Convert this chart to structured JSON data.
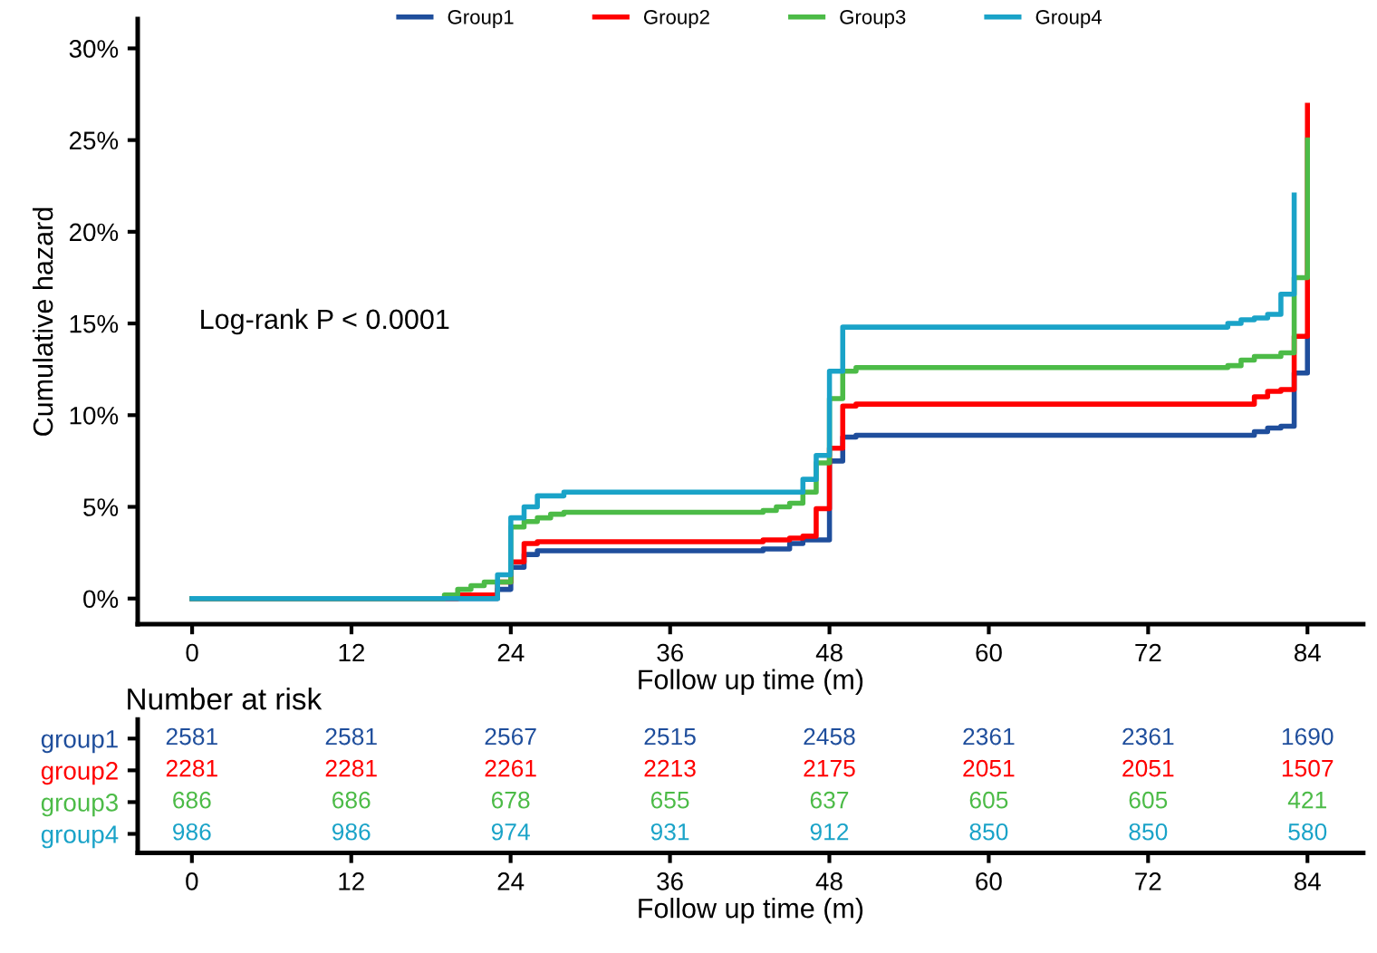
{
  "chart_data": [
    {
      "type": "step",
      "xlabel": "Follow up time (m)",
      "ylabel": "Cumulative hazard",
      "legend": "top",
      "grid": false,
      "xlim": [
        -4.1,
        88.2
      ],
      "xticks": [
        0,
        12,
        24,
        36,
        48,
        60,
        72,
        84
      ],
      "ylim": [
        -1.4,
        31.6
      ],
      "yticks": [
        {
          "value": 0,
          "label": "0%"
        },
        {
          "value": 5,
          "label": "5%"
        },
        {
          "value": 10,
          "label": "10%"
        },
        {
          "value": 15,
          "label": "15%"
        },
        {
          "value": 20,
          "label": "20%"
        },
        {
          "value": 25,
          "label": "25%"
        },
        {
          "value": 30,
          "label": "30%"
        }
      ],
      "annotations": [
        "Log-rank P < 0.0001"
      ],
      "series": [
        {
          "name": "Group1",
          "color": "#1f4e9c",
          "x": [
            0,
            23,
            24,
            25,
            26,
            43,
            45,
            46,
            48,
            49,
            50,
            80,
            81,
            82,
            83,
            84
          ],
          "values": [
            0,
            0.5,
            1.7,
            2.4,
            2.6,
            2.7,
            3.0,
            3.2,
            7.5,
            8.8,
            8.9,
            9.1,
            9.3,
            9.4,
            12.3,
            14.3
          ]
        },
        {
          "name": "Group2",
          "color": "#ff0000",
          "x": [
            0,
            20,
            23,
            24,
            25,
            26,
            43,
            45,
            46,
            47,
            48,
            49,
            50,
            80,
            81,
            82,
            83,
            84
          ],
          "values": [
            0,
            0.2,
            0.9,
            2.0,
            3.0,
            3.1,
            3.2,
            3.3,
            3.4,
            4.9,
            8.2,
            10.5,
            10.6,
            11.0,
            11.3,
            11.4,
            14.3,
            26.9
          ]
        },
        {
          "name": "Group3",
          "color": "#4cbb47",
          "x": [
            0,
            19,
            20,
            21,
            22,
            24,
            25,
            26,
            27,
            28,
            43,
            44,
            45,
            46,
            47,
            48,
            49,
            50,
            78,
            79,
            80,
            82,
            83,
            84
          ],
          "values": [
            0,
            0.2,
            0.5,
            0.7,
            0.9,
            3.9,
            4.2,
            4.4,
            4.6,
            4.7,
            4.8,
            5.0,
            5.2,
            5.8,
            7.4,
            10.9,
            12.4,
            12.6,
            12.7,
            13.0,
            13.2,
            13.4,
            17.5,
            25.0
          ]
        },
        {
          "name": "Group4",
          "color": "#1aa3c8",
          "x": [
            0,
            23,
            24,
            25,
            26,
            28,
            46,
            47,
            48,
            49,
            78,
            79,
            80,
            81,
            82,
            83
          ],
          "values": [
            0,
            1.3,
            4.4,
            5.0,
            5.6,
            5.8,
            6.5,
            7.8,
            12.4,
            14.8,
            15.0,
            15.2,
            15.3,
            15.5,
            16.6,
            22.0
          ]
        }
      ]
    },
    {
      "type": "heatmap",
      "title": "Number at risk",
      "xlabel": "Follow up time (m)",
      "data_labels": true,
      "categories": [
        "0",
        "12",
        "24",
        "36",
        "48",
        "60",
        "72",
        "84"
      ],
      "y_categories": [
        "group1",
        "group2",
        "group3",
        "group4"
      ],
      "colors": [
        "#1f4e9c",
        "#ff0000",
        "#4cbb47",
        "#1aa3c8"
      ],
      "cells": [
        [
          2581,
          2581,
          2567,
          2515,
          2458,
          2361,
          2361,
          1690
        ],
        [
          2281,
          2281,
          2261,
          2213,
          2175,
          2051,
          2051,
          1507
        ],
        [
          686,
          686,
          678,
          655,
          637,
          605,
          605,
          421
        ],
        [
          986,
          986,
          974,
          931,
          912,
          850,
          850,
          580
        ]
      ]
    }
  ]
}
